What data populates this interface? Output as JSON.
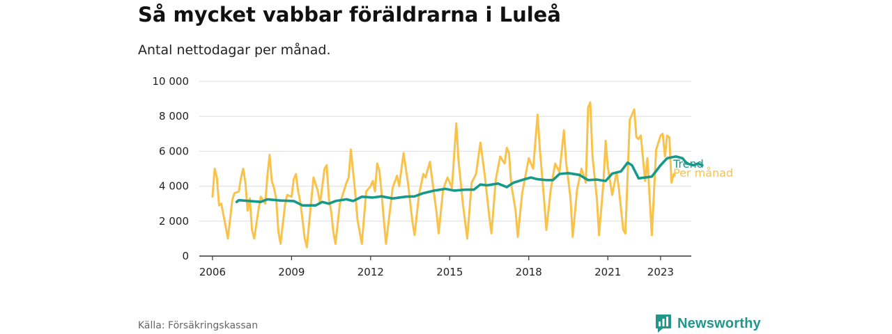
{
  "title": "Så mycket vabbar föräldrarna i Luleå",
  "subtitle": "Antal nettodagar per månad.",
  "source": "Källa: Försäkringskassan",
  "brand": "Newsworthy",
  "colors": {
    "monthly": "#f9c24a",
    "trend": "#17998a",
    "brand": "#21968a",
    "grid": "#dddddd",
    "axis": "#333333"
  },
  "chart_data": {
    "type": "line",
    "x_ticks": [
      "2006",
      "2009",
      "2012",
      "2015",
      "2018",
      "2021",
      "2023"
    ],
    "y_ticks": [
      "0",
      "2 000",
      "4 000",
      "6 000",
      "8 000",
      "10 000"
    ],
    "ylim": [
      0,
      10000
    ],
    "xlim": [
      "2005-07",
      "2024-03"
    ],
    "grid": "horizontal",
    "series": [
      {
        "name": "Trend",
        "color": "#17998a",
        "points": [
          [
            "2006-12",
            3100
          ],
          [
            "2007-01",
            3200
          ],
          [
            "2007-06",
            3150
          ],
          [
            "2007-11",
            3100
          ],
          [
            "2008-02",
            3250
          ],
          [
            "2008-08",
            3180
          ],
          [
            "2009-02",
            3150
          ],
          [
            "2009-06",
            2900
          ],
          [
            "2009-12",
            2900
          ],
          [
            "2010-03",
            3100
          ],
          [
            "2010-06",
            3000
          ],
          [
            "2010-09",
            3150
          ],
          [
            "2011-02",
            3250
          ],
          [
            "2011-05",
            3150
          ],
          [
            "2011-09",
            3400
          ],
          [
            "2012-02",
            3350
          ],
          [
            "2012-06",
            3420
          ],
          [
            "2012-11",
            3300
          ],
          [
            "2013-05",
            3400
          ],
          [
            "2013-09",
            3420
          ],
          [
            "2014-01",
            3600
          ],
          [
            "2014-06",
            3750
          ],
          [
            "2014-11",
            3850
          ],
          [
            "2015-03",
            3750
          ],
          [
            "2015-08",
            3800
          ],
          [
            "2015-12",
            3800
          ],
          [
            "2016-03",
            4100
          ],
          [
            "2016-06",
            4050
          ],
          [
            "2016-11",
            4150
          ],
          [
            "2017-01",
            4050
          ],
          [
            "2017-03",
            3950
          ],
          [
            "2017-06",
            4200
          ],
          [
            "2017-11",
            4400
          ],
          [
            "2018-02",
            4500
          ],
          [
            "2018-05",
            4400
          ],
          [
            "2018-09",
            4350
          ],
          [
            "2018-12",
            4350
          ],
          [
            "2019-03",
            4700
          ],
          [
            "2019-07",
            4750
          ],
          [
            "2019-12",
            4650
          ],
          [
            "2020-04",
            4350
          ],
          [
            "2020-08",
            4380
          ],
          [
            "2020-12",
            4300
          ],
          [
            "2021-03",
            4720
          ],
          [
            "2021-07",
            4850
          ],
          [
            "2021-10",
            5350
          ],
          [
            "2021-12",
            5200
          ],
          [
            "2022-03",
            4450
          ],
          [
            "2022-09",
            4550
          ],
          [
            "2023-01",
            5200
          ],
          [
            "2023-04",
            5600
          ],
          [
            "2023-08",
            5700
          ],
          [
            "2023-11",
            5600
          ],
          [
            "2024-01",
            5300
          ],
          [
            "2024-04",
            5200
          ],
          [
            "2024-06",
            5300
          ],
          [
            "2024-08",
            5200
          ]
        ]
      },
      {
        "name": "Per månad",
        "color": "#f9c24a",
        "points": [
          [
            "2006-01",
            3400
          ],
          [
            "2006-02",
            5000
          ],
          [
            "2006-03",
            4500
          ],
          [
            "2006-04",
            2900
          ],
          [
            "2006-05",
            3000
          ],
          [
            "2006-07",
            1700
          ],
          [
            "2006-08",
            1000
          ],
          [
            "2006-10",
            3200
          ],
          [
            "2006-11",
            3600
          ],
          [
            "2007-01",
            3700
          ],
          [
            "2007-02",
            4500
          ],
          [
            "2007-03",
            5000
          ],
          [
            "2007-04",
            4200
          ],
          [
            "2007-05",
            2600
          ],
          [
            "2007-06",
            3300
          ],
          [
            "2007-07",
            1500
          ],
          [
            "2007-08",
            1000
          ],
          [
            "2007-10",
            2700
          ],
          [
            "2007-11",
            3400
          ],
          [
            "2008-01",
            3000
          ],
          [
            "2008-02",
            4600
          ],
          [
            "2008-03",
            5800
          ],
          [
            "2008-04",
            4300
          ],
          [
            "2008-05",
            3900
          ],
          [
            "2008-06",
            3300
          ],
          [
            "2008-07",
            1400
          ],
          [
            "2008-08",
            700
          ],
          [
            "2008-10",
            2900
          ],
          [
            "2008-11",
            3500
          ],
          [
            "2009-01",
            3400
          ],
          [
            "2009-02",
            4400
          ],
          [
            "2009-03",
            4700
          ],
          [
            "2009-04",
            3700
          ],
          [
            "2009-05",
            3100
          ],
          [
            "2009-07",
            1000
          ],
          [
            "2009-08",
            500
          ],
          [
            "2009-10",
            3200
          ],
          [
            "2009-11",
            4500
          ],
          [
            "2010-01",
            3700
          ],
          [
            "2010-02",
            3000
          ],
          [
            "2010-04",
            5000
          ],
          [
            "2010-05",
            5200
          ],
          [
            "2010-06",
            3300
          ],
          [
            "2010-07",
            2600
          ],
          [
            "2010-08",
            1400
          ],
          [
            "2010-09",
            700
          ],
          [
            "2010-11",
            3000
          ],
          [
            "2011-02",
            4200
          ],
          [
            "2011-03",
            4500
          ],
          [
            "2011-04",
            6100
          ],
          [
            "2011-06",
            3600
          ],
          [
            "2011-07",
            2100
          ],
          [
            "2011-08",
            1400
          ],
          [
            "2011-09",
            700
          ],
          [
            "2011-11",
            3700
          ],
          [
            "2012-01",
            4000
          ],
          [
            "2012-02",
            4300
          ],
          [
            "2012-03",
            3700
          ],
          [
            "2012-04",
            5300
          ],
          [
            "2012-05",
            4900
          ],
          [
            "2012-06",
            3600
          ],
          [
            "2012-07",
            2100
          ],
          [
            "2012-08",
            700
          ],
          [
            "2012-11",
            3900
          ],
          [
            "2013-01",
            4600
          ],
          [
            "2013-02",
            4000
          ],
          [
            "2013-04",
            5900
          ],
          [
            "2013-06",
            4200
          ],
          [
            "2013-08",
            2000
          ],
          [
            "2013-09",
            1200
          ],
          [
            "2013-11",
            3500
          ],
          [
            "2014-01",
            4700
          ],
          [
            "2014-02",
            4500
          ],
          [
            "2014-04",
            5400
          ],
          [
            "2014-05",
            4400
          ],
          [
            "2014-07",
            2500
          ],
          [
            "2014-08",
            1300
          ],
          [
            "2014-10",
            3800
          ],
          [
            "2014-12",
            4500
          ],
          [
            "2015-02",
            3900
          ],
          [
            "2015-04",
            7600
          ],
          [
            "2015-05",
            5500
          ],
          [
            "2015-07",
            3000
          ],
          [
            "2015-09",
            1000
          ],
          [
            "2015-11",
            4200
          ],
          [
            "2016-01",
            4700
          ],
          [
            "2016-03",
            6500
          ],
          [
            "2016-05",
            4600
          ],
          [
            "2016-07",
            2300
          ],
          [
            "2016-08",
            1300
          ],
          [
            "2016-10",
            4400
          ],
          [
            "2016-12",
            5700
          ],
          [
            "2017-02",
            5300
          ],
          [
            "2017-03",
            6200
          ],
          [
            "2017-04",
            5900
          ],
          [
            "2017-05",
            4100
          ],
          [
            "2017-07",
            2600
          ],
          [
            "2017-08",
            1100
          ],
          [
            "2017-10",
            3600
          ],
          [
            "2018-01",
            5600
          ],
          [
            "2018-03",
            5000
          ],
          [
            "2018-05",
            8100
          ],
          [
            "2018-06",
            6200
          ],
          [
            "2018-08",
            3200
          ],
          [
            "2018-09",
            1500
          ],
          [
            "2018-11",
            3800
          ],
          [
            "2019-01",
            5300
          ],
          [
            "2019-03",
            4800
          ],
          [
            "2019-05",
            7200
          ],
          [
            "2019-06",
            5400
          ],
          [
            "2019-08",
            3300
          ],
          [
            "2019-09",
            1100
          ],
          [
            "2019-11",
            3800
          ],
          [
            "2020-01",
            5000
          ],
          [
            "2020-03",
            4200
          ],
          [
            "2020-04",
            8500
          ],
          [
            "2020-05",
            8800
          ],
          [
            "2020-06",
            5700
          ],
          [
            "2020-08",
            3300
          ],
          [
            "2020-09",
            1200
          ],
          [
            "2020-11",
            4200
          ],
          [
            "2020-12",
            6600
          ],
          [
            "2021-01",
            5100
          ],
          [
            "2021-03",
            3500
          ],
          [
            "2021-05",
            4800
          ],
          [
            "2021-06",
            3900
          ],
          [
            "2021-08",
            1500
          ],
          [
            "2021-09",
            1300
          ],
          [
            "2021-11",
            7800
          ],
          [
            "2022-01",
            8400
          ],
          [
            "2022-02",
            6800
          ],
          [
            "2022-03",
            6700
          ],
          [
            "2022-04",
            6900
          ],
          [
            "2022-06",
            4300
          ],
          [
            "2022-07",
            5600
          ],
          [
            "2022-09",
            1200
          ],
          [
            "2022-11",
            6100
          ],
          [
            "2023-01",
            6900
          ],
          [
            "2023-02",
            7000
          ],
          [
            "2023-03",
            5700
          ],
          [
            "2023-04",
            6900
          ],
          [
            "2023-05",
            6800
          ],
          [
            "2023-06",
            4200
          ],
          [
            "2023-07",
            4700
          ]
        ]
      }
    ]
  }
}
